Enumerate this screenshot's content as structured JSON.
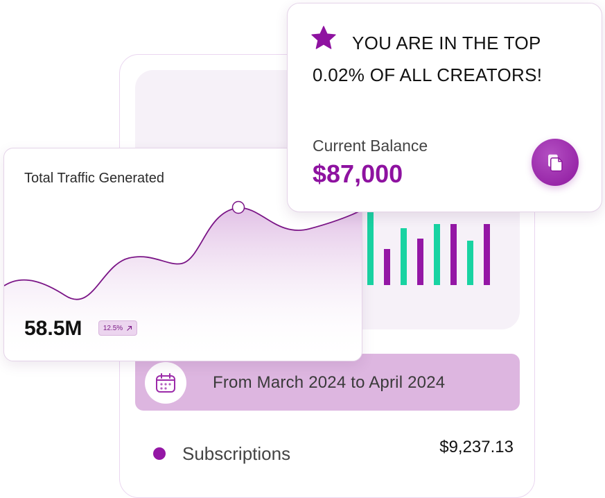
{
  "creator_card": {
    "headline_line1": "YOU ARE IN THE TOP",
    "headline_line2": "0.02% OF ALL CREATORS!",
    "balance_label": "Current Balance",
    "balance_value": "$87,000",
    "icons": {
      "badge": "star-icon",
      "action": "copy-document-icon"
    },
    "colors": {
      "accent": "#8e12a0"
    }
  },
  "traffic_card": {
    "title": "Total Traffic Generated",
    "value": "58.5M",
    "change": "12.5%",
    "change_icon": "arrow-up-right-icon"
  },
  "bar_chart": {
    "colors": {
      "green": "#19d3a2",
      "purple": "#9417a5"
    }
  },
  "date_range": {
    "text": "From March 2024 to April 2024",
    "icon": "calendar-icon"
  },
  "subscriptions": {
    "label": "Subscriptions",
    "value": "$9,237.13"
  }
}
